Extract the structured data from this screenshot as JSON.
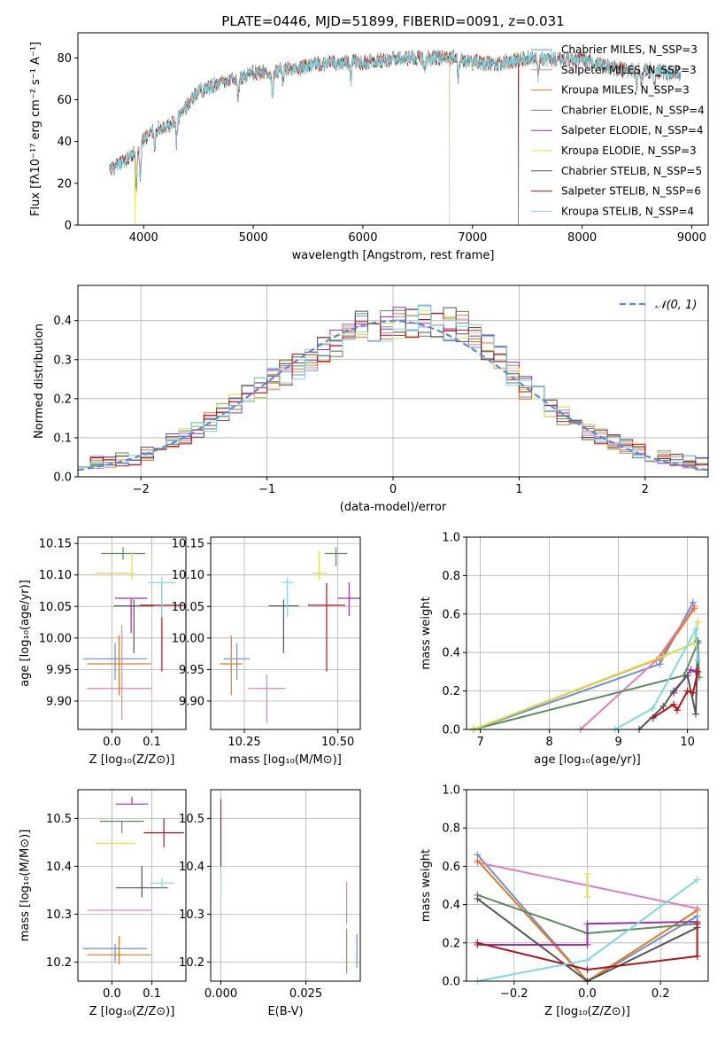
{
  "chart_data": [
    {
      "id": "spectrum",
      "type": "line",
      "title": "PLATE=0446, MJD=51899, FIBERID=0091, z=0.031",
      "xlabel": "wavelength [Angstrom, rest frame]",
      "ylabel": "Flux [fλ10⁻¹⁷ erg cm⁻² s⁻¹ A⁻¹]",
      "xlim": [
        3400,
        9150
      ],
      "ylim": [
        0,
        92
      ],
      "xticks": [
        4000,
        5000,
        6000,
        7000,
        8000,
        9000
      ],
      "yticks": [
        0,
        20,
        40,
        60,
        80
      ],
      "grid": false,
      "legend_position": "top-right",
      "continuum": [
        [
          3690,
          26
        ],
        [
          3750,
          28
        ],
        [
          3820,
          30
        ],
        [
          3900,
          33
        ],
        [
          3980,
          40
        ],
        [
          4100,
          46
        ],
        [
          4200,
          46
        ],
        [
          4300,
          50
        ],
        [
          4400,
          58
        ],
        [
          4500,
          64
        ],
        [
          4650,
          67
        ],
        [
          4800,
          70
        ],
        [
          4900,
          70
        ],
        [
          5000,
          73
        ],
        [
          5100,
          73
        ],
        [
          5200,
          73
        ],
        [
          5300,
          75
        ],
        [
          5400,
          75
        ],
        [
          5500,
          76
        ],
        [
          5600,
          77
        ],
        [
          5800,
          78
        ],
        [
          6000,
          78
        ],
        [
          6200,
          79
        ],
        [
          6400,
          80
        ],
        [
          6600,
          80
        ],
        [
          6800,
          80
        ],
        [
          7000,
          78
        ],
        [
          7200,
          77
        ],
        [
          7400,
          79
        ],
        [
          7600,
          80
        ],
        [
          7800,
          79
        ],
        [
          8000,
          79
        ],
        [
          8200,
          76
        ],
        [
          8400,
          74
        ],
        [
          8600,
          74
        ],
        [
          8800,
          73
        ],
        [
          8900,
          73
        ]
      ],
      "absorption_features": [
        [
          3934,
          18
        ],
        [
          3969,
          16
        ],
        [
          4101,
          8
        ],
        [
          4300,
          10
        ],
        [
          4861,
          8
        ],
        [
          5175,
          12
        ],
        [
          5270,
          6
        ],
        [
          5890,
          8
        ],
        [
          6563,
          6
        ],
        [
          6870,
          9
        ],
        [
          7600,
          10
        ],
        [
          8498,
          7
        ],
        [
          8542,
          8
        ],
        [
          8662,
          7
        ]
      ],
      "drops_to_zero": [
        {
          "series": "Kroupa ELODIE",
          "x": [
            3920,
            6790
          ]
        },
        {
          "series": "Salpeter STELIB",
          "x": [
            7420
          ]
        }
      ],
      "series": [
        {
          "name": "Chabrier MILES, N_SSP=3",
          "color": "#6b8fd6"
        },
        {
          "name": "Salpeter MILES, N_SSP=3",
          "color": "#e07fbf"
        },
        {
          "name": "Kroupa MILES, N_SSP=3",
          "color": "#e07c1f"
        },
        {
          "name": "Chabrier ELODIE, N_SSP=4",
          "color": "#5f8a5f"
        },
        {
          "name": "Salpeter ELODIE, N_SSP=4",
          "color": "#9b30b3"
        },
        {
          "name": "Kroupa ELODIE, N_SSP=3",
          "color": "#d7e04a"
        },
        {
          "name": "Chabrier STELIB, N_SSP=5",
          "color": "#555555"
        },
        {
          "name": "Salpeter STELIB, N_SSP=6",
          "color": "#b0141a"
        },
        {
          "name": "Kroupa STELIB, N_SSP=4",
          "color": "#7ed8e0"
        }
      ]
    },
    {
      "id": "residuals",
      "type": "line",
      "xlabel": "(data-model)/error",
      "ylabel": "Normed distribution",
      "xlim": [
        -2.5,
        2.5
      ],
      "ylim": [
        0,
        0.49
      ],
      "xticks": [
        -2,
        -1,
        0,
        1,
        2
      ],
      "yticks": [
        0.0,
        0.1,
        0.2,
        0.3,
        0.4
      ],
      "grid": true,
      "legend_position": "top-right",
      "reference_curve": {
        "name": "𝒩(0, 1)",
        "color": "#5b8bd8",
        "style": "dashed",
        "mean": 0,
        "sigma": 1
      },
      "bin_width": 0.1,
      "histogram_shape": [
        [
          -2.5,
          0.03
        ],
        [
          -2.0,
          0.05
        ],
        [
          -1.5,
          0.13
        ],
        [
          -1.0,
          0.24
        ],
        [
          -0.6,
          0.31
        ],
        [
          -0.3,
          0.38
        ],
        [
          0.0,
          0.39
        ],
        [
          0.3,
          0.4
        ],
        [
          0.6,
          0.38
        ],
        [
          0.8,
          0.32
        ],
        [
          1.0,
          0.24
        ],
        [
          1.5,
          0.12
        ],
        [
          2.0,
          0.06
        ],
        [
          2.5,
          0.03
        ]
      ]
    },
    {
      "id": "age_vs_Z",
      "type": "scatter",
      "xlabel": "Z [log₁₀(Z/Z⊙)]",
      "ylabel": "age  [log₁₀(age/yr)]",
      "xlim": [
        -0.085,
        0.185
      ],
      "ylim": [
        9.855,
        10.16
      ],
      "xticks": [
        0.0,
        0.1
      ],
      "yticks": [
        9.9,
        9.95,
        10.0,
        10.05,
        10.1,
        10.15
      ],
      "grid": true,
      "points": [
        {
          "x": 0.008,
          "y": 9.967,
          "xerr": 0.08,
          "yerr": [
            0.033,
            0.025
          ],
          "color": "#6b8fd6"
        },
        {
          "x": 0.018,
          "y": 9.92,
          "xerr": 0.08,
          "yerr": [
            0.0,
            0.0
          ],
          "color": "#e07fbf"
        },
        {
          "x": 0.018,
          "y": 9.959,
          "xerr": 0.08,
          "yerr": [
            0.05,
            0.045
          ],
          "color": "#e07c1f"
        },
        {
          "x": 0.025,
          "y": 9.945,
          "xerr": 0.0,
          "yerr": [
            0.075,
            0.075
          ],
          "color": "#e07fbf"
        },
        {
          "x": 0.028,
          "y": 10.134,
          "xerr": 0.055,
          "yerr": [
            0.01,
            0.01
          ],
          "color": "#5f8a5f"
        },
        {
          "x": 0.008,
          "y": 10.103,
          "xerr": 0.05,
          "yerr": [
            0.0,
            0.0
          ],
          "color": "#d7e04a"
        },
        {
          "x": 0.05,
          "y": 10.102,
          "xerr": 0.0,
          "yerr": [
            0.01,
            0.035
          ],
          "color": "#d7e04a"
        },
        {
          "x": 0.048,
          "y": 10.063,
          "xerr": 0.04,
          "yerr": [
            0.055,
            0.0
          ],
          "color": "#9b30b3"
        },
        {
          "x": 0.055,
          "y": 10.051,
          "xerr": 0.05,
          "yerr": [
            0.075,
            0.01
          ],
          "color": "#555555"
        },
        {
          "x": 0.125,
          "y": 10.052,
          "xerr": 0.055,
          "yerr": [
            0.105,
            0.035
          ],
          "color": "#b0141a"
        },
        {
          "x": 0.125,
          "y": 10.088,
          "xerr": 0.035,
          "yerr": [
            0.055,
            0.008
          ],
          "color": "#7ed8e0"
        }
      ]
    },
    {
      "id": "age_vs_mass",
      "type": "scatter",
      "xlabel": "mass [log₁₀(M/M⊙)]",
      "xlim": [
        10.16,
        10.56
      ],
      "ylim": [
        9.855,
        10.16
      ],
      "xticks": [
        10.25,
        10.5
      ],
      "yticks": [
        9.9,
        9.95,
        10.0,
        10.05,
        10.1,
        10.15
      ],
      "grid": true,
      "points": [
        {
          "x": 10.23,
          "y": 9.967,
          "xerr": 0.035,
          "yerr": [
            0.033,
            0.025
          ],
          "color": "#6b8fd6"
        },
        {
          "x": 10.215,
          "y": 9.959,
          "xerr": 0.03,
          "yerr": [
            0.05,
            0.045
          ],
          "color": "#e07c1f"
        },
        {
          "x": 10.31,
          "y": 9.92,
          "xerr": 0.05,
          "yerr": [
            0.055,
            0.022
          ],
          "color": "#e07fbf"
        },
        {
          "x": 10.495,
          "y": 10.134,
          "xerr": 0.03,
          "yerr": [
            0.02,
            0.01
          ],
          "color": "#5f8a5f"
        },
        {
          "x": 10.45,
          "y": 10.103,
          "xerr": 0.02,
          "yerr": [
            0.01,
            0.035
          ],
          "color": "#d7e04a"
        },
        {
          "x": 10.53,
          "y": 10.063,
          "xerr": 0.03,
          "yerr": [
            0.028,
            0.025
          ],
          "color": "#9b30b3"
        },
        {
          "x": 10.355,
          "y": 10.051,
          "xerr": 0.04,
          "yerr": [
            0.075,
            0.01
          ],
          "color": "#555555"
        },
        {
          "x": 10.47,
          "y": 10.052,
          "xerr": 0.05,
          "yerr": [
            0.105,
            0.035
          ],
          "color": "#b0141a"
        },
        {
          "x": 10.365,
          "y": 10.088,
          "xerr": 0.015,
          "yerr": [
            0.055,
            0.008
          ],
          "color": "#7ed8e0"
        }
      ]
    },
    {
      "id": "weight_vs_age",
      "type": "line",
      "xlabel": "age  [log₁₀(age/yr)]",
      "ylabel": "mass weight",
      "xlim": [
        6.8,
        10.3
      ],
      "ylim": [
        0.0,
        1.0
      ],
      "xticks": [
        7,
        8,
        9,
        10
      ],
      "yticks": [
        0.0,
        0.2,
        0.4,
        0.6,
        0.8,
        1.0
      ],
      "grid": true,
      "series": [
        {
          "color": "#6b8fd6",
          "x": [
            6.9,
            9.6,
            10.08
          ],
          "y": [
            0.0,
            0.34,
            0.66
          ]
        },
        {
          "color": "#e07fbf",
          "x": [
            8.45,
            9.55,
            10.1
          ],
          "y": [
            0.0,
            0.36,
            0.64
          ]
        },
        {
          "color": "#e07c1f",
          "x": [
            6.9,
            9.6,
            10.1
          ],
          "y": [
            0.0,
            0.37,
            0.63
          ]
        },
        {
          "color": "#5f8a5f",
          "x": [
            6.9,
            9.95,
            10.15,
            10.17
          ],
          "y": [
            0.0,
            0.28,
            0.45,
            0.27
          ]
        },
        {
          "color": "#9b30b3",
          "x": [
            9.8,
            10.05,
            10.12
          ],
          "y": [
            0.19,
            0.31,
            0.3
          ]
        },
        {
          "color": "#d7e04a",
          "x": [
            6.9,
            9.65,
            10.1,
            10.15
          ],
          "y": [
            0.0,
            0.38,
            0.45,
            0.56
          ]
        },
        {
          "color": "#555555",
          "x": [
            9.3,
            9.65,
            9.8,
            10.0,
            10.12,
            10.15
          ],
          "y": [
            0.0,
            0.12,
            0.2,
            0.28,
            0.08,
            0.46
          ]
        },
        {
          "color": "#b0141a",
          "x": [
            9.5,
            9.8,
            9.85,
            10.0,
            10.08,
            10.15
          ],
          "y": [
            0.06,
            0.13,
            0.1,
            0.2,
            0.19,
            0.3
          ]
        },
        {
          "color": "#7ed8e0",
          "x": [
            8.95,
            9.5,
            10.12,
            10.15
          ],
          "y": [
            0.0,
            0.11,
            0.52,
            0.36
          ]
        }
      ]
    },
    {
      "id": "mass_vs_Z",
      "type": "scatter",
      "xlabel": "Z [log₁₀(Z/Z⊙)]",
      "ylabel": "mass [log₁₀(M/M⊙)]",
      "xlim": [
        -0.085,
        0.185
      ],
      "ylim": [
        10.16,
        10.56
      ],
      "xticks": [
        0.0,
        0.1
      ],
      "yticks": [
        10.2,
        10.3,
        10.4,
        10.5
      ],
      "grid": true,
      "points": [
        {
          "x": 0.008,
          "y": 10.228,
          "xerr": 0.08,
          "yerr": [
            0.03,
            0.01
          ],
          "color": "#6b8fd6"
        },
        {
          "x": 0.018,
          "y": 10.215,
          "xerr": 0.08,
          "yerr": [
            0.02,
            0.04
          ],
          "color": "#e07c1f"
        },
        {
          "x": 0.018,
          "y": 10.308,
          "xerr": 0.08,
          "yerr": [
            0.0,
            0.0
          ],
          "color": "#e07fbf"
        },
        {
          "x": 0.025,
          "y": 10.494,
          "xerr": 0.055,
          "yerr": [
            0.025,
            0.0
          ],
          "color": "#5f8a5f"
        },
        {
          "x": 0.008,
          "y": 10.448,
          "xerr": 0.05,
          "yerr": [
            0.0,
            0.0
          ],
          "color": "#d7e04a"
        },
        {
          "x": 0.05,
          "y": 10.53,
          "xerr": 0.04,
          "yerr": [
            0.0,
            0.015
          ],
          "color": "#9b30b3"
        },
        {
          "x": 0.075,
          "y": 10.355,
          "xerr": 0.065,
          "yerr": [
            0.02,
            0.045
          ],
          "color": "#555555"
        },
        {
          "x": 0.13,
          "y": 10.47,
          "xerr": 0.05,
          "yerr": [
            0.03,
            0.03
          ],
          "color": "#b0141a"
        },
        {
          "x": 0.125,
          "y": 10.365,
          "xerr": 0.03,
          "yerr": [
            0.01,
            0.01
          ],
          "color": "#7ed8e0"
        }
      ]
    },
    {
      "id": "mass_vs_ebv",
      "type": "scatter",
      "xlabel": "E(B-V)",
      "xlim": [
        -0.003,
        0.041
      ],
      "ylim": [
        10.16,
        10.56
      ],
      "xticks": [
        0.0,
        0.025
      ],
      "yticks": [
        10.2,
        10.3,
        10.4,
        10.5
      ],
      "grid": true,
      "points": [
        {
          "x": 0.0,
          "y": 10.47,
          "xerr": 0.0,
          "yerr": [
            0.07,
            0.07
          ],
          "color": "#b0141a"
        },
        {
          "x": 0.0,
          "y": 10.52,
          "xerr": 0.0,
          "yerr": [
            0.02,
            0.02
          ],
          "color": "#9b30b3"
        },
        {
          "x": 0.0,
          "y": 10.37,
          "xerr": 0.0,
          "yerr": [
            0.03,
            0.02
          ],
          "color": "#7ed8e0"
        },
        {
          "x": 0.037,
          "y": 10.308,
          "xerr": 0.0,
          "yerr": [
            0.03,
            0.06
          ],
          "color": "#e07fbf"
        },
        {
          "x": 0.037,
          "y": 10.215,
          "xerr": 0.0,
          "yerr": [
            0.04,
            0.055
          ],
          "color": "#e07c1f"
        },
        {
          "x": 0.04,
          "y": 10.228,
          "xerr": 0.0,
          "yerr": [
            0.04,
            0.03
          ],
          "color": "#6b8fd6"
        }
      ]
    },
    {
      "id": "weight_vs_Z",
      "type": "line",
      "xlabel": "Z [log₁₀(Z/Z⊙)]",
      "ylabel": "mass weight",
      "xlim": [
        -0.33,
        0.33
      ],
      "ylim": [
        0.0,
        1.0
      ],
      "xticks": [
        -0.2,
        0.0,
        0.2
      ],
      "yticks": [
        0.0,
        0.2,
        0.4,
        0.6,
        0.8,
        1.0
      ],
      "grid": true,
      "series": [
        {
          "color": "#6b8fd6",
          "x": [
            -0.3,
            0.0,
            0.3
          ],
          "y": [
            0.66,
            0.0,
            0.34
          ]
        },
        {
          "color": "#e07fbf",
          "x": [
            -0.3,
            0.3
          ],
          "y": [
            0.62,
            0.38
          ]
        },
        {
          "color": "#e07c1f",
          "x": [
            -0.3,
            0.0,
            0.3
          ],
          "y": [
            0.63,
            0.0,
            0.37
          ]
        },
        {
          "color": "#5f8a5f",
          "x": [
            -0.3,
            0.0,
            0.3
          ],
          "y": [
            0.45,
            0.25,
            0.3
          ]
        },
        {
          "color": "#9b30b3",
          "x": [
            -0.3,
            0.0,
            0.0,
            0.3
          ],
          "y": [
            0.19,
            0.19,
            0.3,
            0.31
          ]
        },
        {
          "color": "#d7e04a",
          "x": [
            0.0,
            0.0
          ],
          "y": [
            0.56,
            0.44
          ]
        },
        {
          "color": "#555555",
          "x": [
            -0.3,
            0.0,
            0.3
          ],
          "y": [
            0.43,
            0.0,
            0.28
          ]
        },
        {
          "color": "#b0141a",
          "x": [
            -0.3,
            0.0,
            0.3,
            0.3
          ],
          "y": [
            0.2,
            0.06,
            0.13,
            0.3
          ]
        },
        {
          "color": "#7ed8e0",
          "x": [
            -0.3,
            0.0,
            0.3
          ],
          "y": [
            0.0,
            0.11,
            0.53
          ]
        }
      ]
    }
  ]
}
